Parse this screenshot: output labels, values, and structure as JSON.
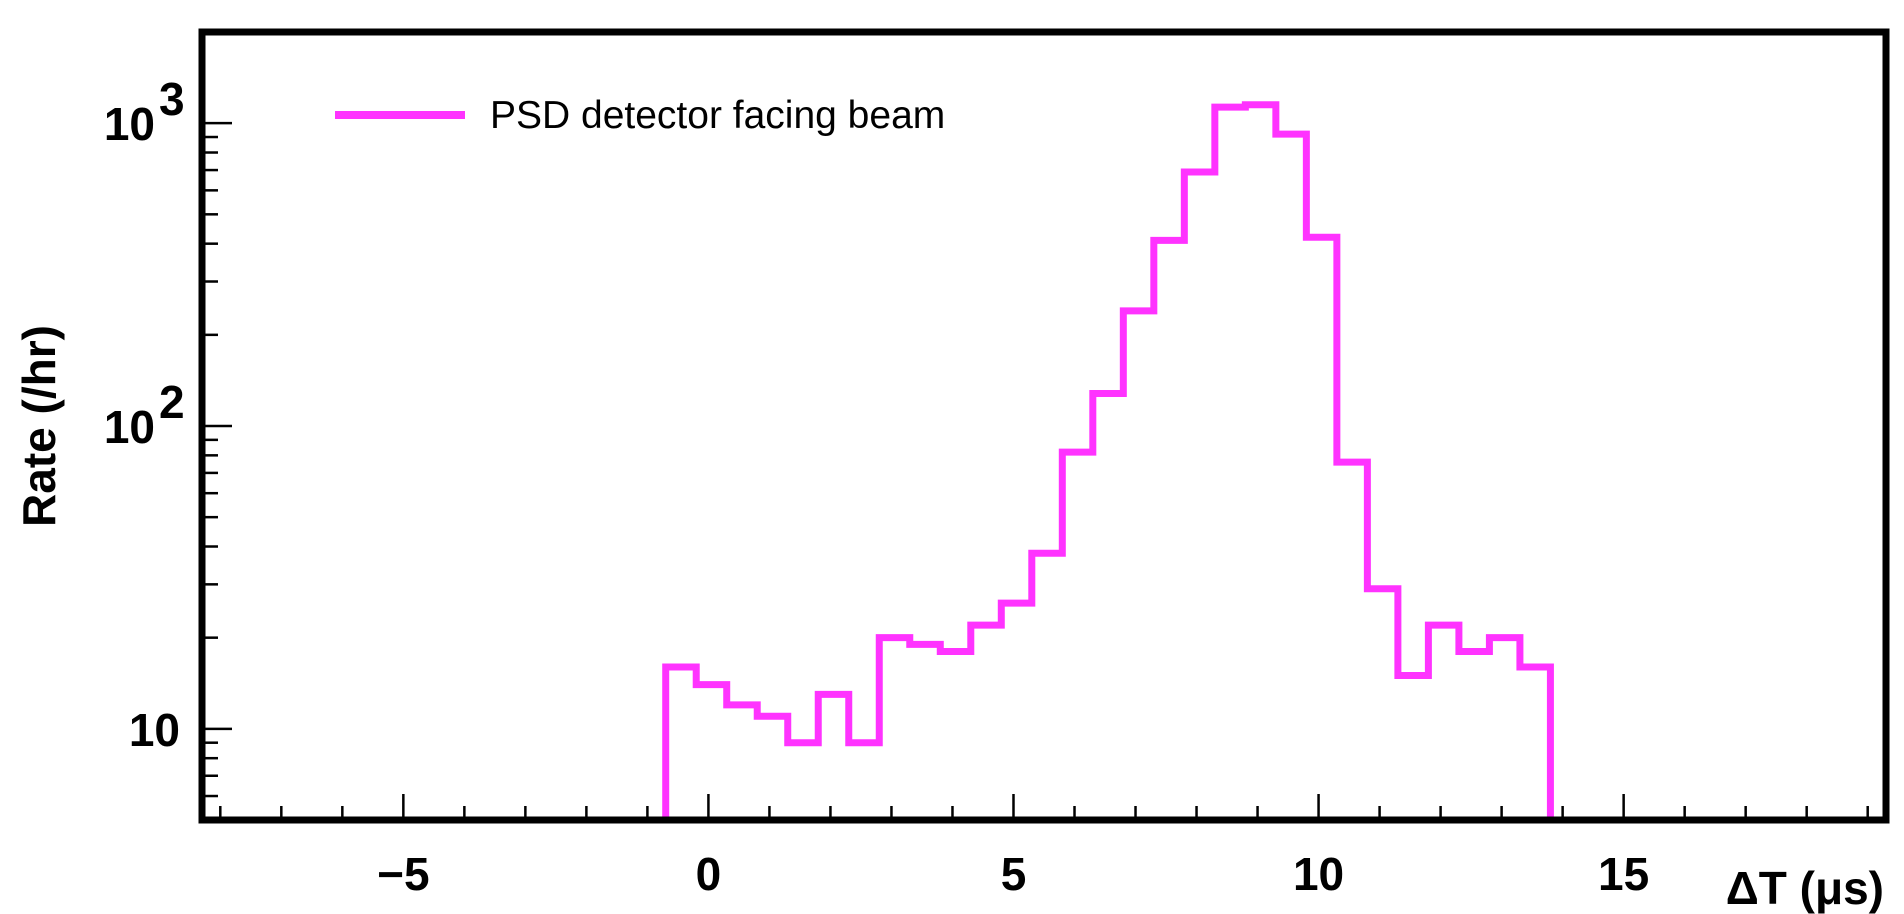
{
  "chart_data": {
    "type": "line",
    "drawstyle": "histogram-step",
    "xlabel": "ΔT (μs)",
    "ylabel": "Rate (/hr)",
    "xlim": [
      -8.3,
      19.3
    ],
    "ylim": [
      5,
      2000
    ],
    "yscale": "log",
    "grid": false,
    "legend_position": "top-left",
    "x_ticks": [
      {
        "value": -5,
        "label": "−5"
      },
      {
        "value": 0,
        "label": "0"
      },
      {
        "value": 5,
        "label": "5"
      },
      {
        "value": 10,
        "label": "10"
      },
      {
        "value": 15,
        "label": "15"
      }
    ],
    "y_ticks": [
      {
        "value": 10,
        "label": "10",
        "sup": ""
      },
      {
        "value": 100,
        "label": "10",
        "sup": "2"
      },
      {
        "value": 1000,
        "label": "10",
        "sup": "3"
      }
    ],
    "series": [
      {
        "name": "PSD detector facing beam",
        "color": "#ff33ff",
        "bin_edges": [
          -8.3,
          -0.7,
          -0.2,
          0.3,
          0.8,
          1.3,
          1.8,
          2.3,
          2.8,
          3.3,
          3.8,
          4.3,
          4.8,
          5.3,
          5.8,
          6.3,
          6.8,
          7.3,
          7.8,
          8.3,
          8.8,
          9.3,
          9.8,
          10.3,
          10.8,
          11.3,
          11.8,
          12.3,
          12.8,
          13.3,
          13.8,
          14.3,
          19.3
        ],
        "values": [
          5,
          16,
          14,
          12,
          11,
          9,
          13,
          9,
          20,
          19,
          18,
          22,
          26,
          38,
          82,
          128,
          240,
          410,
          690,
          1130,
          1150,
          920,
          420,
          76,
          29,
          15,
          22,
          18,
          20,
          16,
          5,
          5
        ]
      }
    ]
  }
}
